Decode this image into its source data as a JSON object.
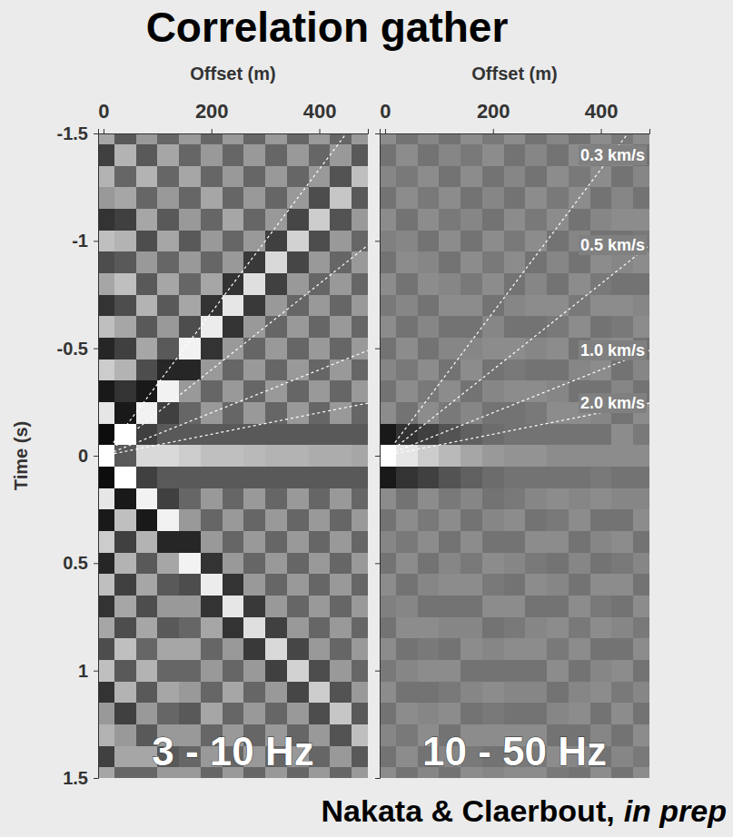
{
  "title": "Correlation gather",
  "credit": {
    "authors": "Nakata & Claerbout,",
    "status": "in prep"
  },
  "chart_data": [
    {
      "type": "heatmap",
      "title": "3 - 10 Hz",
      "xlabel": "Offset (m)",
      "ylabel": "Time (s)",
      "x": [
        0,
        40,
        80,
        120,
        160,
        200,
        240,
        280,
        320,
        360,
        400,
        440,
        480
      ],
      "y": [
        -1.5,
        -1.4,
        -1.3,
        -1.2,
        -1.1,
        -1.0,
        -0.9,
        -0.8,
        -0.7,
        -0.6,
        -0.5,
        -0.4,
        -0.3,
        -0.2,
        -0.1,
        0,
        0.1,
        0.2,
        0.3,
        0.4,
        0.5,
        0.6,
        0.7,
        0.8,
        0.9,
        1.0,
        1.1,
        1.2,
        1.3,
        1.4,
        1.5
      ],
      "z": [
        [
          0.3,
          -0.5,
          0.4,
          0.2,
          -0.6,
          0.5,
          -0.4,
          0.3,
          -0.6,
          0.5,
          -0.7,
          0.6,
          -0.8,
          0.8,
          -0.9,
          1.0,
          -0.9,
          0.8,
          -0.8,
          0.6,
          -0.7,
          0.5,
          -0.6,
          0.3,
          -0.4,
          0.5,
          -0.6,
          0.2,
          0.4,
          -0.5,
          0.3
        ],
        [
          -0.3,
          0.4,
          -0.2,
          0.3,
          -0.5,
          0.4,
          -0.3,
          0.5,
          -0.4,
          0.3,
          -0.5,
          0.4,
          -0.6,
          -0.8,
          1.0,
          -0.3,
          1.0,
          -0.8,
          0.5,
          -0.5,
          0.4,
          -0.5,
          0.3,
          -0.4,
          0.5,
          -0.3,
          0.4,
          -0.5,
          0.2,
          0.3,
          -0.2
        ],
        [
          0.2,
          -0.3,
          0.4,
          -0.2,
          0.3,
          -0.4,
          0.2,
          -0.3,
          0.4,
          -0.3,
          0.3,
          -0.4,
          -0.8,
          0.9,
          -0.5,
          0.7,
          -0.5,
          0.9,
          -0.8,
          0.4,
          -0.3,
          0.3,
          -0.4,
          0.3,
          -0.2,
          0.4,
          -0.3,
          0.2,
          -0.3,
          0.3,
          -0.2
        ],
        [
          -0.2,
          0.3,
          -0.2,
          0.2,
          -0.3,
          0.3,
          -0.2,
          0.3,
          -0.3,
          0.2,
          -0.3,
          -0.7,
          0.9,
          -0.5,
          -0.3,
          0.7,
          -0.3,
          -0.5,
          0.9,
          -0.7,
          0.3,
          -0.3,
          0.2,
          -0.3,
          0.3,
          -0.2,
          0.3,
          -0.2,
          0.2,
          -0.3,
          0.2
        ],
        [
          0.2,
          -0.2,
          0.3,
          -0.2,
          0.2,
          -0.3,
          0.2,
          -0.2,
          0.3,
          -0.4,
          0.9,
          -0.7,
          0.2,
          -0.2,
          -0.3,
          0.6,
          -0.3,
          -0.2,
          0.2,
          -0.7,
          0.9,
          -0.4,
          0.2,
          -0.2,
          0.3,
          -0.2,
          0.2,
          -0.3,
          0.2,
          -0.2,
          0.2
        ],
        [
          -0.2,
          0.2,
          -0.2,
          0.3,
          -0.2,
          0.2,
          -0.2,
          0.3,
          -0.6,
          0.85,
          -0.6,
          0.2,
          -0.2,
          0.2,
          -0.3,
          0.5,
          -0.3,
          0.2,
          -0.2,
          0.2,
          -0.6,
          0.85,
          -0.6,
          0.3,
          -0.2,
          0.2,
          -0.2,
          0.3,
          -0.2,
          0.2,
          -0.2
        ],
        [
          0.2,
          -0.2,
          0.2,
          -0.2,
          0.3,
          -0.2,
          0.2,
          -0.6,
          0.8,
          -0.6,
          0.2,
          -0.2,
          0.2,
          -0.2,
          -0.3,
          0.5,
          -0.3,
          -0.2,
          0.2,
          -0.2,
          0.2,
          -0.6,
          0.8,
          -0.6,
          0.2,
          -0.2,
          0.3,
          -0.2,
          0.2,
          -0.2,
          0.2
        ],
        [
          -0.2,
          0.2,
          -0.2,
          0.2,
          -0.2,
          0.2,
          -0.55,
          0.75,
          -0.55,
          0.2,
          -0.2,
          0.2,
          -0.2,
          0.2,
          -0.3,
          0.45,
          -0.3,
          0.2,
          -0.2,
          0.2,
          -0.2,
          0.2,
          -0.55,
          0.75,
          -0.55,
          0.2,
          -0.2,
          0.2,
          -0.2,
          0.2,
          -0.2
        ],
        [
          0.2,
          -0.2,
          0.2,
          -0.2,
          0.2,
          -0.5,
          0.7,
          -0.5,
          0.2,
          -0.2,
          0.2,
          -0.2,
          0.2,
          -0.2,
          -0.3,
          0.4,
          -0.3,
          -0.2,
          0.2,
          -0.2,
          0.2,
          -0.2,
          0.2,
          -0.5,
          0.7,
          -0.5,
          0.2,
          -0.2,
          0.2,
          -0.2,
          0.2
        ],
        [
          -0.2,
          0.2,
          -0.2,
          0.2,
          -0.45,
          0.65,
          -0.45,
          0.2,
          -0.2,
          0.2,
          -0.2,
          0.2,
          -0.2,
          0.2,
          -0.3,
          0.4,
          -0.3,
          0.2,
          -0.2,
          0.2,
          -0.2,
          0.2,
          -0.2,
          0.2,
          -0.45,
          0.65,
          -0.45,
          0.2,
          -0.2,
          0.2,
          -0.2
        ],
        [
          0.2,
          -0.2,
          0.2,
          -0.4,
          0.6,
          -0.4,
          0.2,
          -0.2,
          0.2,
          -0.2,
          0.2,
          -0.2,
          0.2,
          -0.2,
          -0.3,
          0.35,
          -0.3,
          -0.2,
          0.2,
          -0.2,
          0.2,
          -0.2,
          0.2,
          -0.2,
          0.2,
          -0.4,
          0.6,
          -0.4,
          0.2,
          -0.2,
          0.2
        ],
        [
          -0.2,
          0.2,
          -0.35,
          0.55,
          -0.35,
          0.2,
          -0.2,
          0.2,
          -0.2,
          0.2,
          -0.2,
          0.2,
          -0.2,
          0.2,
          -0.3,
          0.35,
          -0.3,
          0.2,
          -0.2,
          0.2,
          -0.2,
          0.2,
          -0.2,
          0.2,
          -0.2,
          0.2,
          -0.35,
          0.55,
          -0.35,
          0.2,
          -0.2
        ],
        [
          0.2,
          -0.3,
          0.5,
          -0.3,
          0.2,
          -0.2,
          0.2,
          -0.2,
          0.2,
          -0.2,
          0.2,
          -0.2,
          0.2,
          -0.2,
          -0.3,
          0.3,
          -0.3,
          -0.2,
          0.2,
          -0.2,
          0.2,
          -0.2,
          0.2,
          -0.2,
          0.2,
          -0.2,
          0.2,
          -0.3,
          0.5,
          -0.3,
          0.2
        ]
      ],
      "zlim": [
        -1,
        1
      ],
      "xlim": [
        -10,
        490
      ],
      "ylim": [
        -1.5,
        1.5
      ],
      "xticks": [
        0,
        200,
        400
      ],
      "yticks": [
        -1.5,
        -1,
        -0.5,
        0,
        0.5,
        1,
        1.5
      ],
      "velocity_lines": [
        0.3,
        0.5,
        1.0,
        2.0
      ]
    },
    {
      "type": "heatmap",
      "title": "10 - 50 Hz",
      "xlabel": "Offset (m)",
      "x": [
        0,
        40,
        80,
        120,
        160,
        200,
        240,
        280,
        320,
        360,
        400,
        440,
        480
      ],
      "y": [
        -1.5,
        -1.4,
        -1.3,
        -1.2,
        -1.1,
        -1.0,
        -0.9,
        -0.8,
        -0.7,
        -0.6,
        -0.5,
        -0.4,
        -0.3,
        -0.2,
        -0.1,
        0,
        0.1,
        0.2,
        0.3,
        0.4,
        0.5,
        0.6,
        0.7,
        0.8,
        0.9,
        1.0,
        1.1,
        1.2,
        1.3,
        1.4,
        1.5
      ],
      "z": [
        [
          0.1,
          -0.1,
          0.05,
          -0.1,
          0.1,
          0,
          -0.1,
          0.1,
          -0.05,
          0.1,
          -0.1,
          0.05,
          -0.1,
          0.1,
          -0.8,
          1.0,
          -0.8,
          0.1,
          -0.1,
          0.05,
          -0.1,
          0.1,
          0,
          -0.1,
          0.1,
          -0.05,
          0.1,
          -0.1,
          0.05,
          -0.1,
          0.1
        ],
        [
          -0.1,
          0.1,
          -0.05,
          0.1,
          -0.1,
          0.05,
          0.1,
          -0.1,
          0.05,
          -0.1,
          0.1,
          -0.05,
          0.1,
          -0.1,
          -0.6,
          0.8,
          -0.6,
          -0.1,
          0.1,
          -0.05,
          0.1,
          -0.1,
          0.05,
          0.1,
          -0.1,
          0.05,
          -0.1,
          0.1,
          -0.05,
          0.1,
          -0.1
        ],
        [
          0.05,
          -0.1,
          0.1,
          -0.05,
          0.1,
          -0.1,
          0.05,
          0.1,
          -0.1,
          0.05,
          -0.1,
          0.1,
          -0.05,
          0.1,
          -0.5,
          0.6,
          -0.5,
          0.1,
          -0.05,
          0.1,
          -0.1,
          0.05,
          -0.1,
          0.1,
          -0.05,
          0.1,
          -0.1,
          0.05,
          0.1,
          -0.1,
          0.05
        ],
        [
          -0.1,
          0.05,
          -0.1,
          0.1,
          -0.05,
          0.1,
          -0.1,
          0.05,
          0.1,
          -0.1,
          0.05,
          -0.1,
          0.1,
          -0.05,
          -0.35,
          0.45,
          -0.35,
          -0.05,
          0.1,
          -0.1,
          0.05,
          0.1,
          -0.1,
          0.05,
          -0.1,
          0.1,
          -0.05,
          0.1,
          -0.1,
          0.05,
          -0.1
        ],
        [
          0.1,
          -0.05,
          0.1,
          -0.1,
          0.05,
          -0.1,
          0.1,
          -0.05,
          0.1,
          -0.1,
          0.05,
          0.1,
          -0.1,
          0.05,
          -0.25,
          0.3,
          -0.25,
          0.05,
          -0.1,
          0.1,
          -0.05,
          0.1,
          -0.1,
          0.05,
          0.1,
          -0.1,
          0.05,
          -0.1,
          0.1,
          -0.05,
          0.1
        ],
        [
          -0.05,
          0.1,
          -0.1,
          0.05,
          -0.1,
          0.1,
          -0.05,
          0.1,
          -0.1,
          0.05,
          0.1,
          -0.1,
          0.05,
          -0.1,
          -0.15,
          0.2,
          -0.15,
          -0.1,
          0.05,
          -0.1,
          0.1,
          -0.05,
          0.1,
          -0.1,
          0.05,
          -0.1,
          0.1,
          -0.05,
          0.1,
          -0.1,
          0.05
        ],
        [
          0.1,
          -0.1,
          0.05,
          -0.1,
          0.1,
          -0.05,
          0.1,
          -0.1,
          0.05,
          -0.1,
          0.1,
          -0.05,
          0.1,
          -0.1,
          -0.1,
          0.15,
          -0.1,
          -0.05,
          0.1,
          -0.1,
          0.05,
          -0.1,
          0.1,
          -0.05,
          0.1,
          -0.1,
          0.05,
          -0.1,
          0.1,
          -0.05,
          0.1
        ],
        [
          -0.1,
          0.05,
          -0.1,
          0.1,
          -0.05,
          0.1,
          -0.1,
          0.05,
          0.1,
          -0.1,
          0.05,
          -0.1,
          0.1,
          -0.05,
          -0.1,
          0.15,
          -0.1,
          0.05,
          -0.1,
          0.1,
          -0.05,
          0.1,
          -0.1,
          0.05,
          0.1,
          -0.1,
          0.05,
          -0.1,
          0.1,
          -0.05,
          0.1
        ],
        [
          0.05,
          -0.1,
          0.1,
          -0.05,
          0.1,
          -0.1,
          0.05,
          -0.1,
          0.1,
          -0.05,
          0.1,
          -0.1,
          0.05,
          0.1,
          -0.1,
          0.1,
          -0.1,
          0.1,
          -0.05,
          0.1,
          -0.1,
          0.05,
          -0.1,
          0.1,
          -0.05,
          0.1,
          -0.1,
          0.05,
          -0.1,
          0.1,
          -0.05
        ],
        [
          -0.1,
          0.1,
          -0.05,
          0.1,
          -0.1,
          0.05,
          -0.1,
          0.1,
          -0.05,
          0.1,
          -0.1,
          0.05,
          -0.1,
          0.1,
          -0.1,
          0.1,
          -0.1,
          0.05,
          0.1,
          -0.1,
          0.05,
          -0.1,
          0.1,
          -0.05,
          0.1,
          -0.1,
          0.05,
          0.1,
          -0.1,
          0.05,
          -0.1
        ],
        [
          0.1,
          -0.05,
          0.1,
          -0.1,
          0.05,
          -0.1,
          0.1,
          -0.05,
          0.1,
          -0.1,
          0.05,
          0.1,
          -0.1,
          0.05,
          -0.1,
          0.1,
          -0.05,
          0.1,
          -0.1,
          0.05,
          -0.1,
          0.1,
          -0.05,
          0.1,
          -0.1,
          0.05,
          0.1,
          -0.1,
          0.05,
          -0.1,
          0.1
        ],
        [
          -0.05,
          0.1,
          -0.1,
          0.05,
          0.1,
          -0.1,
          0.05,
          -0.1,
          0.1,
          -0.05,
          0.1,
          -0.1,
          0.05,
          -0.1,
          0.1,
          0.1,
          -0.1,
          0.05,
          -0.1,
          0.1,
          -0.05,
          0.1,
          -0.1,
          0.05,
          -0.1,
          0.1,
          -0.05,
          0.1,
          -0.1,
          0.05,
          -0.1
        ],
        [
          0.1,
          -0.1,
          0.05,
          -0.1,
          0.1,
          -0.05,
          0.1,
          -0.1,
          0.05,
          0.1,
          -0.1,
          0.05,
          -0.1,
          0.1,
          -0.05,
          0.1,
          -0.1,
          0.05,
          0.1,
          -0.1,
          0.05,
          -0.1,
          0.1,
          -0.05,
          0.1,
          -0.1,
          0.05,
          -0.1,
          0.1,
          -0.05,
          0.1
        ]
      ],
      "zlim": [
        -1,
        1
      ],
      "xlim": [
        -10,
        490
      ],
      "ylim": [
        -1.5,
        1.5
      ],
      "xticks": [
        0,
        200,
        400
      ],
      "yticks": [
        -1.5,
        -1,
        -0.5,
        0,
        0.5,
        1,
        1.5
      ],
      "tick_labels": "x",
      "velocity_lines": [
        {
          "value": 0.3,
          "label": "0.3 km/s"
        },
        {
          "value": 0.5,
          "label": "0.5 km/s"
        },
        {
          "value": 1.0,
          "label": "1.0 km/s"
        },
        {
          "value": 2.0,
          "label": "2.0 km/s"
        }
      ]
    }
  ]
}
